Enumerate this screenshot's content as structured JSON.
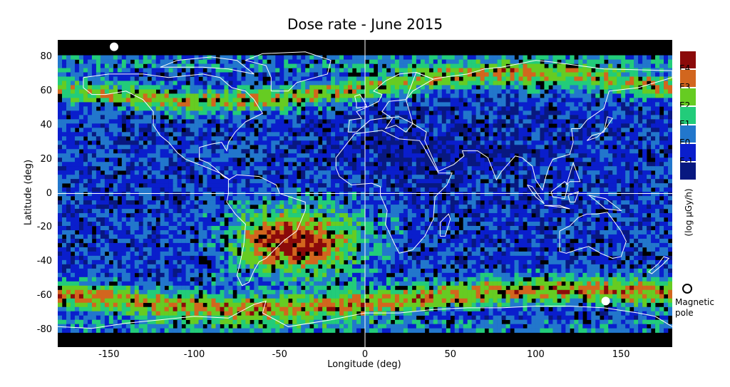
{
  "title": "Dose rate - June 2015",
  "map": {
    "x_axis_label": "Longitude (deg)",
    "y_axis_label": "Latitude (deg)",
    "x_range": [
      -180,
      180
    ],
    "y_range": [
      -90,
      90
    ],
    "x_ticks": [
      "-150",
      "-100",
      "-50",
      "0",
      "50",
      "100",
      "150"
    ],
    "x_tick_values": [
      -150,
      -100,
      -50,
      0,
      50,
      100,
      150
    ],
    "y_ticks": [
      "80",
      "60",
      "40",
      "20",
      "0",
      "-20",
      "-40",
      "-60",
      "-80"
    ],
    "y_tick_values": [
      80,
      60,
      40,
      20,
      0,
      -20,
      -40,
      -60,
      -80
    ],
    "background_color": "#000000",
    "coastline_color": "#ffffff",
    "gridline_color": "#ffffff"
  },
  "legend": {
    "title": "(log µGy/h)",
    "entries": [
      {
        "label": "E4",
        "color": "#8b0a0a"
      },
      {
        "label": "E3",
        "color": "#d2661e"
      },
      {
        "label": "E2",
        "color": "#66cc22"
      },
      {
        "label": "E1",
        "color": "#22cc7a"
      },
      {
        "label": "E0",
        "color": "#2277cc"
      },
      {
        "label": "E-1",
        "color": "#0a1ecc"
      },
      {
        "label": "",
        "color": "#081880"
      }
    ]
  },
  "magnetic_pole": {
    "label_line1": "Magnetic",
    "label_line2": "pole",
    "markers": [
      {
        "lon": -147,
        "lat": 86
      },
      {
        "lon": 141,
        "lat": -63
      }
    ]
  }
}
